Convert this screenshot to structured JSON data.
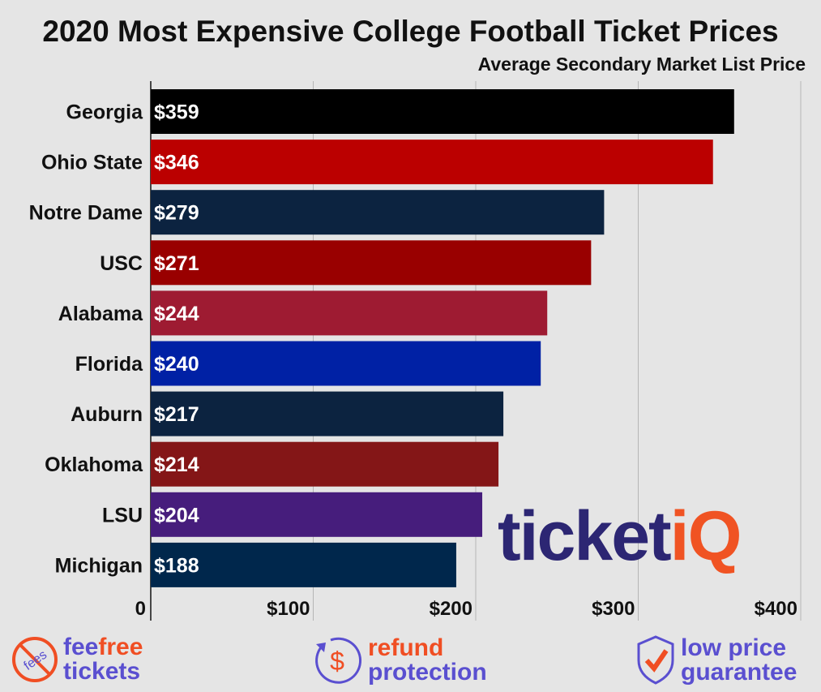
{
  "chart_data": {
    "type": "bar",
    "orientation": "horizontal",
    "title": "2020 Most Expensive College Football Ticket Prices",
    "subtitle": "Average Secondary Market List Price",
    "categories": [
      "Georgia",
      "Ohio State",
      "Notre Dame",
      "USC",
      "Alabama",
      "Florida",
      "Auburn",
      "Oklahoma",
      "LSU",
      "Michigan"
    ],
    "values": [
      359,
      346,
      279,
      271,
      244,
      240,
      217,
      214,
      204,
      188
    ],
    "data_labels": [
      "$359",
      "$346",
      "$279",
      "$271",
      "$244",
      "$240",
      "$217",
      "$214",
      "$204",
      "$188"
    ],
    "colors": [
      "#000000",
      "#bb0000",
      "#0c2340",
      "#990000",
      "#9e1b32",
      "#0021a5",
      "#0c2340",
      "#841617",
      "#461d7c",
      "#00274c"
    ],
    "xlim": [
      0,
      400
    ],
    "xticks": [
      0,
      100,
      200,
      300,
      400
    ],
    "xtick_labels": [
      "0",
      "$100",
      "$200",
      "$300",
      "$400"
    ],
    "grid": true
  },
  "logo": {
    "text_dark": "ticket",
    "text_accent": "iQ"
  },
  "footer": [
    {
      "icon": "no-fees-icon",
      "icon_text": "fees",
      "line1a": "fee",
      "line1b": "free",
      "line2": "tickets"
    },
    {
      "icon": "refund-dollar-icon",
      "icon_text": "$",
      "line1": "refund",
      "line2": "protection"
    },
    {
      "icon": "shield-check-icon",
      "line1": "low price",
      "line2": "guarantee"
    }
  ]
}
